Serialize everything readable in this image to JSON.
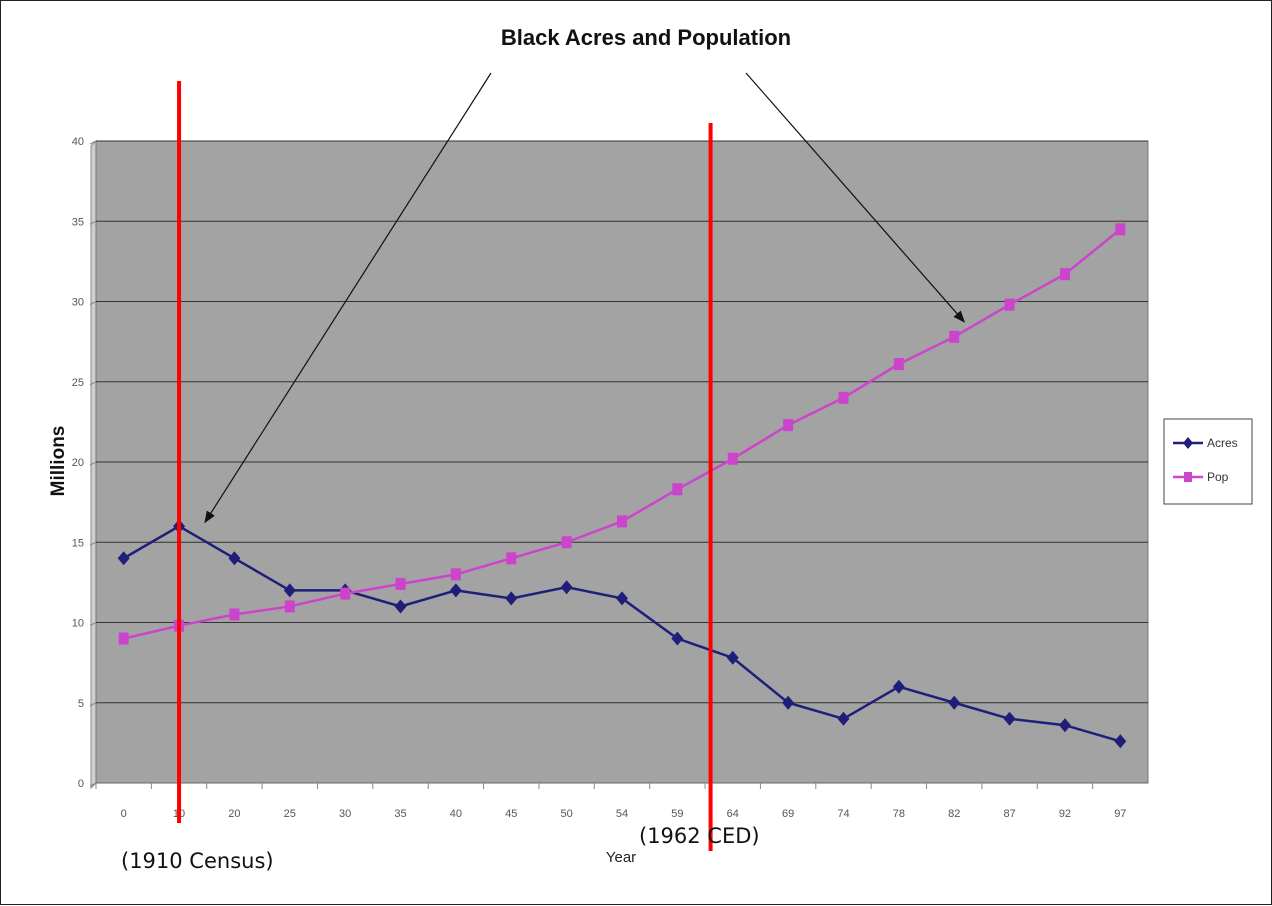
{
  "chart_data": {
    "type": "line",
    "title": "Black Acres and Population",
    "xlabel": "Year",
    "ylabel": "Millions",
    "categories": [
      "0",
      "10",
      "20",
      "25",
      "30",
      "35",
      "40",
      "45",
      "50",
      "54",
      "59",
      "64",
      "69",
      "74",
      "78",
      "82",
      "87",
      "92",
      "97"
    ],
    "ylim": [
      0,
      40
    ],
    "yticks": [
      "0",
      "5",
      "10",
      "15",
      "20",
      "25",
      "30",
      "35",
      "40"
    ],
    "grid": true,
    "legend_position": "right",
    "series": [
      {
        "name": "Acres",
        "color": "#1f1f7a",
        "marker": "diamond",
        "values": [
          14,
          16,
          14,
          12,
          12,
          11,
          12,
          11.5,
          12.2,
          11.5,
          9,
          7.8,
          5,
          4,
          6,
          5,
          4,
          3.6,
          2.6
        ]
      },
      {
        "name": "Pop",
        "color": "#cc44cc",
        "marker": "square",
        "values": [
          9,
          9.8,
          10.5,
          11,
          11.8,
          12.4,
          13,
          14,
          15,
          16.3,
          18.3,
          20.2,
          22.3,
          24,
          26.1,
          27.8,
          29.8,
          31.7,
          34.5
        ]
      }
    ],
    "annotations": [
      {
        "text": "(1910 Census)",
        "marker_category_index": 1
      },
      {
        "text": "(1962 CED)",
        "marker_between": [
          10,
          11
        ],
        "marker_fraction": 0.6
      }
    ],
    "plot_background": "#a3a3a3",
    "marker_line_color": "#ff0000"
  }
}
